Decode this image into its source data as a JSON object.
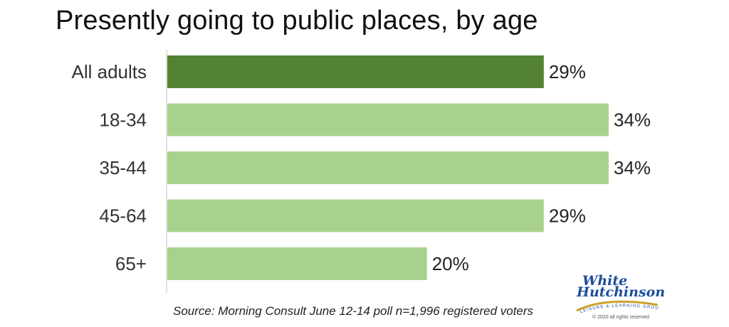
{
  "title": "Presently going to public places, by age",
  "source": "Source: Morning Consult June 12-14 poll n=1,996 registered voters",
  "logo": {
    "line1": "White",
    "line2": "Hutchinson",
    "tagline": "LEISURE & LEARNING GROUP",
    "copyright": "© 2020 all rights reserved"
  },
  "colors": {
    "highlight": "#548235",
    "bar": "#a9d18e",
    "axis": "#d9d9d9",
    "logo_blue": "#1d4e9a",
    "logo_gold": "#c9a227"
  },
  "chart_data": {
    "type": "bar",
    "orientation": "horizontal",
    "categories": [
      "All adults",
      "18-34",
      "35-44",
      "45-64",
      "65+"
    ],
    "values": [
      29,
      34,
      34,
      29,
      20
    ],
    "data_labels": [
      "29%",
      "34%",
      "34%",
      "29%",
      "20%"
    ],
    "highlight_index": 0,
    "title": "Presently going to public places, by age",
    "xlabel": "",
    "ylabel": "",
    "xlim": [
      0,
      34
    ],
    "grid": false,
    "legend": "none"
  }
}
